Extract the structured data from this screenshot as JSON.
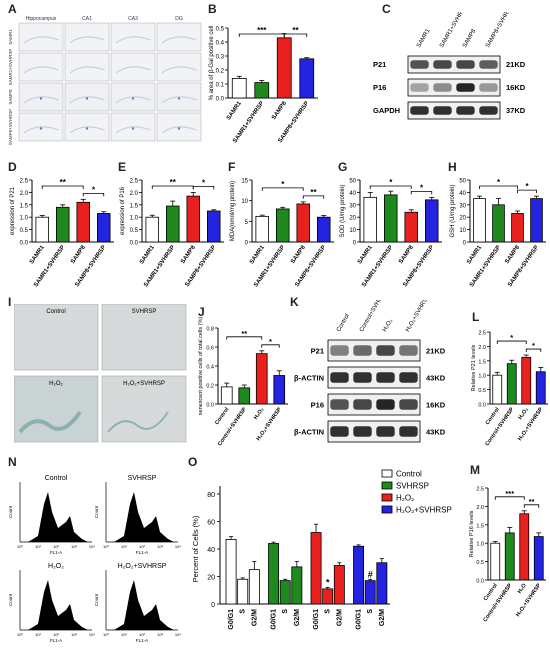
{
  "panel_letters": {
    "A": "A",
    "B": "B",
    "C": "C",
    "D": "D",
    "E": "E",
    "F": "F",
    "G": "G",
    "H": "H",
    "I": "I",
    "J": "J",
    "K": "K",
    "L": "L",
    "M": "M",
    "N": "N",
    "O": "O"
  },
  "colors": {
    "white": "#ffffff",
    "green": "#1e8a1e",
    "red": "#e8211e",
    "blue": "#2323e0",
    "black": "#000000"
  },
  "panel_A": {
    "columns": [
      "Hippocampus",
      "CA1",
      "CA3",
      "DG"
    ],
    "rows": [
      "SAMR1",
      "SAMR1+SVHRSP",
      "SAMP8",
      "SAMP8+SVHRSP"
    ]
  },
  "panel_C": {
    "lanes": [
      "SAMR1",
      "SAMR1+SVHRSP",
      "SAMP8",
      "SAMP8+SVHRSP"
    ],
    "bands": [
      {
        "name": "P21",
        "size": "21KD",
        "intensity": [
          0.75,
          0.8,
          0.8,
          0.7
        ]
      },
      {
        "name": "P16",
        "size": "16KD",
        "intensity": [
          0.4,
          0.5,
          0.95,
          0.45
        ]
      },
      {
        "name": "GAPDH",
        "size": "37KD",
        "intensity": [
          0.9,
          0.9,
          0.9,
          0.9
        ]
      }
    ]
  },
  "panel_I": {
    "labels": [
      "Control",
      "SVHRSP",
      "H₂O₂",
      "H₂O₂+SVHRSP"
    ]
  },
  "panel_K": {
    "lanes": [
      "Control",
      "Control+SVHRSP",
      "H₂O₂",
      "H₂O₂+SVHRSP"
    ],
    "bands": [
      {
        "name": "P21",
        "size": "21KD",
        "intensity": [
          0.55,
          0.65,
          0.8,
          0.6
        ]
      },
      {
        "name": "β-ACTIN",
        "size": "43KD",
        "intensity": [
          0.9,
          0.9,
          0.9,
          0.9
        ]
      },
      {
        "name": "P16",
        "size": "16KD",
        "intensity": [
          0.75,
          0.8,
          0.95,
          0.8
        ]
      },
      {
        "name": "β-ACTIN",
        "size": "43KD",
        "intensity": [
          0.9,
          0.9,
          0.9,
          0.9
        ]
      }
    ]
  },
  "panel_N": {
    "labels": [
      "Control",
      "SVHRSP",
      "H₂O₂",
      "H₂O₂+SVHRSP"
    ],
    "xlabel": "FL1-A",
    "ylabel": "Count",
    "ticks": [
      "10⁰",
      "10¹",
      "10²",
      "10³",
      "10⁴"
    ]
  },
  "chart_data": [
    {
      "panel": "B",
      "type": "bar",
      "categories": [
        "SAMR1",
        "SAMR1+SVHRSP",
        "SAMP8",
        "SAMP8+SVHRSP"
      ],
      "values": [
        0.14,
        0.11,
        0.43,
        0.28
      ],
      "errors": [
        0.015,
        0.015,
        0.03,
        0.008
      ],
      "ylabel": "% area of β-Gal positive cell",
      "ylim": [
        0,
        0.5
      ],
      "yticks": [
        0.0,
        0.1,
        0.2,
        0.3,
        0.4,
        0.5
      ],
      "sig": [
        {
          "from": 0,
          "to": 2,
          "label": "***"
        },
        {
          "from": 2,
          "to": 3,
          "label": "**"
        }
      ]
    },
    {
      "panel": "D",
      "type": "bar",
      "categories": [
        "SAMR1",
        "SAMR1+SVHRSP",
        "SAMP8",
        "SAMP8+SVHRSP"
      ],
      "values": [
        1.0,
        1.4,
        1.6,
        1.15
      ],
      "errors": [
        0.07,
        0.1,
        0.12,
        0.07
      ],
      "ylabel": "expression of P21",
      "ylim": [
        0,
        2.5
      ],
      "yticks": [
        0.0,
        0.5,
        1.0,
        1.5,
        2.0,
        2.5
      ],
      "sig": [
        {
          "from": 0,
          "to": 2,
          "label": "**"
        },
        {
          "from": 2,
          "to": 3,
          "label": "*"
        }
      ]
    },
    {
      "panel": "E",
      "type": "bar",
      "categories": [
        "SAMR1",
        "SAMR1+SVHRSP",
        "SAMP8",
        "SAMP8+SVHRSP"
      ],
      "values": [
        1.0,
        1.45,
        1.85,
        1.25
      ],
      "errors": [
        0.08,
        0.2,
        0.15,
        0.05
      ],
      "ylabel": "expression of P16",
      "ylim": [
        0,
        2.5
      ],
      "yticks": [
        0.0,
        0.5,
        1.0,
        1.5,
        2.0,
        2.5
      ],
      "sig": [
        {
          "from": 0,
          "to": 2,
          "label": "**"
        },
        {
          "from": 2,
          "to": 3,
          "label": "*"
        }
      ]
    },
    {
      "panel": "F",
      "type": "bar",
      "categories": [
        "SAMR1",
        "SAMR1+SVHRSP",
        "SAMP8",
        "SAMP8+SVHRSP"
      ],
      "values": [
        6.2,
        8.0,
        9.2,
        6.0
      ],
      "errors": [
        0.3,
        0.4,
        0.5,
        0.4
      ],
      "ylabel": "MDA(nmol/mg protein)",
      "ylim": [
        0,
        15
      ],
      "yticks": [
        0,
        5,
        10,
        15
      ],
      "sig": [
        {
          "from": 0,
          "to": 2,
          "label": "*"
        },
        {
          "from": 2,
          "to": 3,
          "label": "**"
        }
      ]
    },
    {
      "panel": "G",
      "type": "bar",
      "categories": [
        "SAMR1",
        "SAMR1+SVHRSP",
        "SAMP8",
        "SAMP8+SVHRSP"
      ],
      "values": [
        36,
        38,
        24,
        34
      ],
      "errors": [
        4,
        3,
        2,
        2
      ],
      "ylabel": "SOD (U/mg protein)",
      "ylim": [
        0,
        50
      ],
      "yticks": [
        0,
        10,
        20,
        30,
        40,
        50
      ],
      "sig": [
        {
          "from": 0,
          "to": 2,
          "label": "*"
        },
        {
          "from": 2,
          "to": 3,
          "label": "*"
        }
      ]
    },
    {
      "panel": "H",
      "type": "bar",
      "categories": [
        "SAMR1",
        "SAMR1+SVHRSP",
        "SAMP8",
        "SAMP8+SVHRSP"
      ],
      "values": [
        35,
        30,
        23,
        35
      ],
      "errors": [
        2,
        5,
        2,
        2
      ],
      "ylabel": "GSH (U/mg protein)",
      "ylim": [
        0,
        50
      ],
      "yticks": [
        0,
        10,
        20,
        30,
        40,
        50
      ],
      "sig": [
        {
          "from": 0,
          "to": 2,
          "label": "*"
        },
        {
          "from": 2,
          "to": 3,
          "label": "*"
        }
      ]
    },
    {
      "panel": "J",
      "type": "bar",
      "categories": [
        "Control",
        "Control+SVHRSP",
        "H₂O₂",
        "H₂O₂+SVHRSP"
      ],
      "values": [
        0.18,
        0.17,
        0.53,
        0.3
      ],
      "errors": [
        0.04,
        0.03,
        0.03,
        0.05
      ],
      "ylabel": "senescent positive cells of total cells (%)",
      "ylim": [
        0,
        0.8
      ],
      "yticks": [
        0.0,
        0.2,
        0.4,
        0.6,
        0.8
      ],
      "sig": [
        {
          "from": 0,
          "to": 2,
          "label": "**"
        },
        {
          "from": 2,
          "to": 3,
          "label": "*"
        }
      ]
    },
    {
      "panel": "L",
      "type": "bar",
      "categories": [
        "Control",
        "Control+SVHRSP",
        "H₂O₂",
        "H₂O₂+SVHRSP"
      ],
      "values": [
        1.0,
        1.4,
        1.62,
        1.12
      ],
      "errors": [
        0.1,
        0.12,
        0.08,
        0.15
      ],
      "ylabel": "Relative P21 levels",
      "ylim": [
        0,
        2.5
      ],
      "yticks": [
        0.0,
        0.5,
        1.0,
        1.5,
        2.0,
        2.5
      ],
      "sig": [
        {
          "from": 0,
          "to": 2,
          "label": "*"
        },
        {
          "from": 2,
          "to": 3,
          "label": "*"
        }
      ]
    },
    {
      "panel": "M",
      "type": "bar",
      "categories": [
        "Control",
        "Control+SVHRSP",
        "H₂O",
        "H₂O₂+SVHRSP"
      ],
      "values": [
        1.0,
        1.28,
        1.8,
        1.18
      ],
      "errors": [
        0.05,
        0.15,
        0.08,
        0.1
      ],
      "ylabel": "Relative P16 levels",
      "ylim": [
        0,
        2.5
      ],
      "yticks": [
        0.0,
        0.5,
        1.0,
        1.5,
        2.0,
        2.5
      ],
      "sig": [
        {
          "from": 0,
          "to": 2,
          "label": "***"
        },
        {
          "from": 2,
          "to": 3,
          "label": "**"
        }
      ]
    },
    {
      "panel": "O",
      "type": "bar",
      "categories": [
        "G0/G1",
        "S",
        "G2/M"
      ],
      "ylabel": "Percent of Cells (%)",
      "ylim": [
        0,
        80
      ],
      "yticks": [
        0,
        20,
        40,
        60,
        80
      ],
      "series": [
        {
          "name": "Control",
          "values": [
            47,
            18,
            25
          ],
          "errors": [
            2,
            1,
            6
          ]
        },
        {
          "name": "SVHRSP",
          "values": [
            44,
            17,
            27
          ],
          "errors": [
            1,
            1,
            4
          ]
        },
        {
          "name": "H₂O₂",
          "values": [
            52,
            11,
            28
          ],
          "errors": [
            6,
            1,
            2
          ]
        },
        {
          "name": "H₂O₂+SVHRSP",
          "values": [
            42,
            17,
            30
          ],
          "errors": [
            1,
            1,
            3
          ]
        }
      ],
      "markers": [
        {
          "series": 2,
          "category": 1,
          "label": "*"
        },
        {
          "series": 3,
          "category": 1,
          "label": "#"
        }
      ]
    }
  ]
}
